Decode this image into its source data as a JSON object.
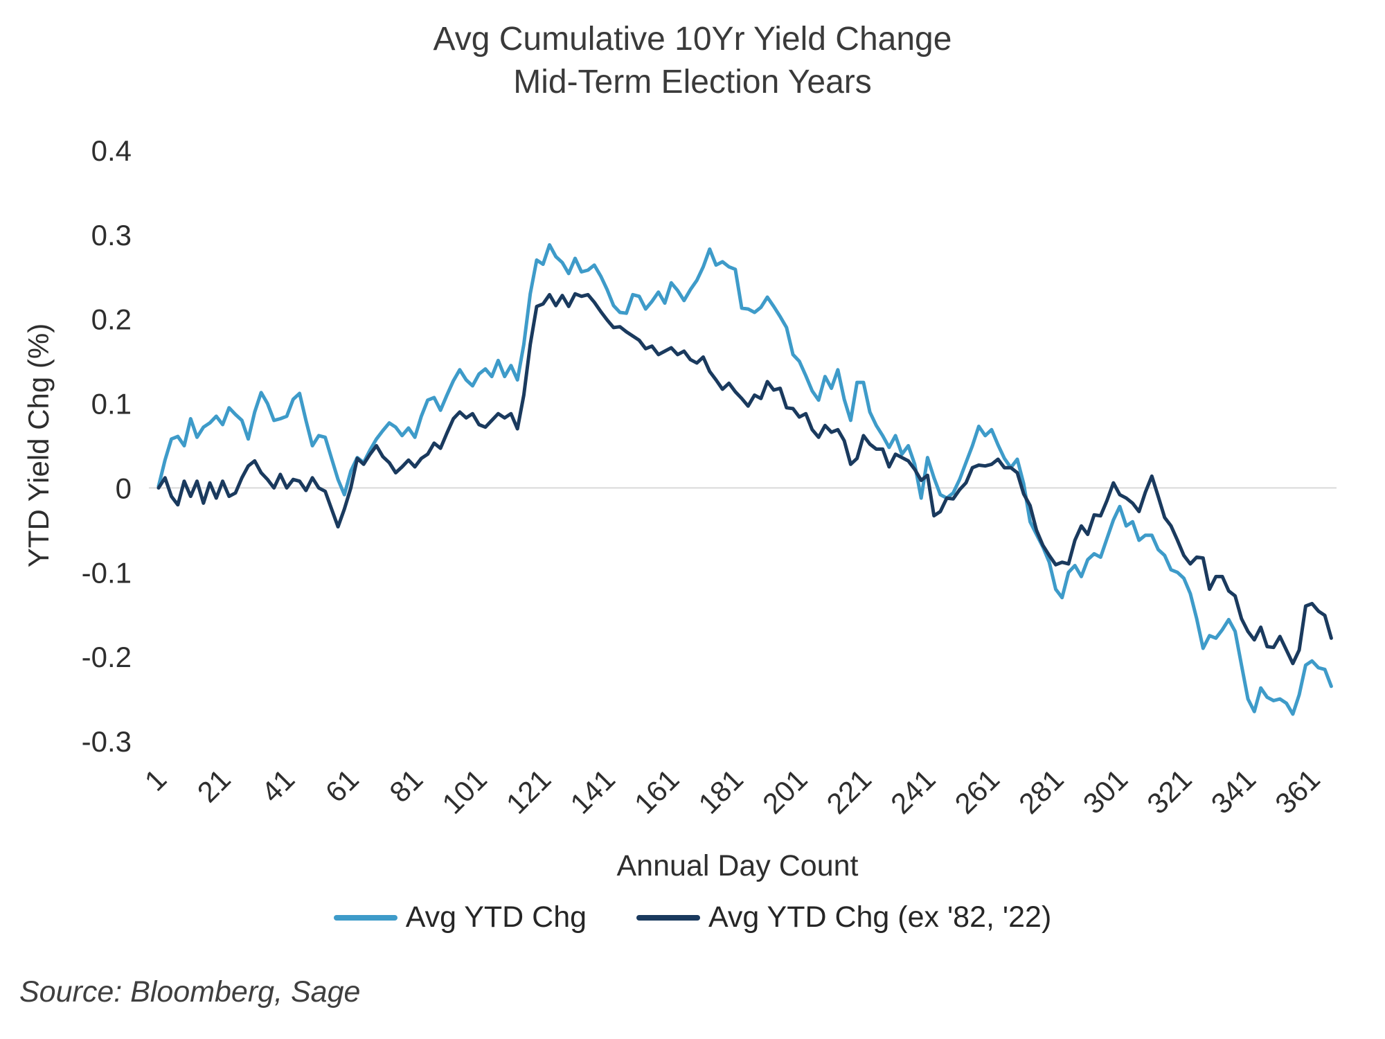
{
  "title": {
    "line1": "Avg Cumulative 10Yr Yield Change",
    "line2": "Mid-Term Election Years"
  },
  "source": "Source: Bloomberg, Sage",
  "colors": {
    "series_light_blue": "#3E9BC9",
    "series_navy": "#1A3A5E",
    "gridline": "#D9D9D9",
    "tick_text": "#2E2E2E",
    "title_text": "#3A3A3A"
  },
  "chart_data": {
    "type": "line",
    "title": "Avg Cumulative 10Yr Yield Change - Mid-Term Election Years",
    "xlabel": "Annual Day Count",
    "ylabel": "YTD Yield Chg (%)",
    "legend_position": "bottom",
    "grid": "zero-line-only",
    "x_axis": {
      "label": "Annual Day Count",
      "ticks": [
        1,
        21,
        41,
        61,
        81,
        101,
        121,
        141,
        161,
        181,
        201,
        221,
        241,
        261,
        281,
        301,
        321,
        341,
        361
      ],
      "tick_rotation_deg": -45
    },
    "y_axis": {
      "label": "YTD Yield Chg (%)",
      "ticks": [
        "0.4",
        "0.3",
        "0.2",
        "0.1",
        "0",
        "-0.1",
        "-0.2",
        "-0.3"
      ],
      "min": -0.3,
      "max": 0.4
    },
    "xlim": [
      1,
      368
    ],
    "ylim": [
      -0.3,
      0.4
    ],
    "x_day_start": 1,
    "x_day_step": 2,
    "series": [
      {
        "name": "Avg YTD Chg",
        "color": "#3E9BC9",
        "values": [
          0.002,
          0.033,
          0.058,
          0.061,
          0.05,
          0.082,
          0.06,
          0.072,
          0.077,
          0.085,
          0.075,
          0.095,
          0.087,
          0.08,
          0.058,
          0.09,
          0.113,
          0.1,
          0.08,
          0.082,
          0.085,
          0.105,
          0.112,
          0.08,
          0.05,
          0.062,
          0.06,
          0.035,
          0.01,
          -0.008,
          0.02,
          0.036,
          0.03,
          0.045,
          0.058,
          0.068,
          0.077,
          0.072,
          0.062,
          0.071,
          0.06,
          0.085,
          0.104,
          0.107,
          0.092,
          0.11,
          0.127,
          0.14,
          0.128,
          0.121,
          0.135,
          0.141,
          0.132,
          0.151,
          0.132,
          0.145,
          0.128,
          0.17,
          0.23,
          0.27,
          0.265,
          0.288,
          0.274,
          0.267,
          0.254,
          0.272,
          0.256,
          0.258,
          0.264,
          0.251,
          0.235,
          0.216,
          0.208,
          0.207,
          0.229,
          0.227,
          0.212,
          0.221,
          0.232,
          0.219,
          0.243,
          0.234,
          0.222,
          0.235,
          0.246,
          0.262,
          0.283,
          0.264,
          0.268,
          0.262,
          0.259,
          0.213,
          0.212,
          0.208,
          0.214,
          0.226,
          0.215,
          0.203,
          0.19,
          0.158,
          0.15,
          0.133,
          0.115,
          0.104,
          0.132,
          0.118,
          0.14,
          0.105,
          0.08,
          0.125,
          0.125,
          0.09,
          0.074,
          0.062,
          0.048,
          0.062,
          0.04,
          0.05,
          0.028,
          -0.012,
          0.036,
          0.012,
          -0.008,
          -0.012,
          -0.006,
          0.01,
          0.03,
          0.05,
          0.073,
          0.062,
          0.069,
          0.051,
          0.035,
          0.024,
          0.034,
          0.005,
          -0.04,
          -0.055,
          -0.07,
          -0.088,
          -0.12,
          -0.13,
          -0.1,
          -0.092,
          -0.105,
          -0.085,
          -0.078,
          -0.082,
          -0.06,
          -0.038,
          -0.022,
          -0.045,
          -0.04,
          -0.062,
          -0.056,
          -0.056,
          -0.073,
          -0.08,
          -0.097,
          -0.1,
          -0.107,
          -0.125,
          -0.155,
          -0.19,
          -0.175,
          -0.178,
          -0.168,
          -0.156,
          -0.17,
          -0.21,
          -0.25,
          -0.265,
          -0.237,
          -0.248,
          -0.252,
          -0.25,
          -0.255,
          -0.268,
          -0.245,
          -0.21,
          -0.205,
          -0.213,
          -0.215,
          -0.235
        ]
      },
      {
        "name": "Avg YTD Chg (ex '82, '22)",
        "color": "#1A3A5E",
        "values": [
          0.0,
          0.012,
          -0.01,
          -0.02,
          0.008,
          -0.01,
          0.008,
          -0.018,
          0.006,
          -0.012,
          0.008,
          -0.01,
          -0.006,
          0.012,
          0.026,
          0.032,
          0.018,
          0.01,
          0.0,
          0.016,
          0.0,
          0.01,
          0.008,
          -0.003,
          0.012,
          0.0,
          -0.004,
          -0.025,
          -0.046,
          -0.025,
          0.0,
          0.035,
          0.028,
          0.04,
          0.05,
          0.037,
          0.03,
          0.018,
          0.025,
          0.033,
          0.025,
          0.035,
          0.04,
          0.053,
          0.047,
          0.065,
          0.082,
          0.09,
          0.083,
          0.088,
          0.075,
          0.072,
          0.08,
          0.088,
          0.083,
          0.088,
          0.07,
          0.11,
          0.17,
          0.215,
          0.218,
          0.229,
          0.216,
          0.228,
          0.215,
          0.23,
          0.227,
          0.229,
          0.22,
          0.209,
          0.199,
          0.19,
          0.191,
          0.185,
          0.18,
          0.175,
          0.165,
          0.168,
          0.158,
          0.162,
          0.166,
          0.158,
          0.162,
          0.152,
          0.148,
          0.155,
          0.138,
          0.128,
          0.117,
          0.124,
          0.114,
          0.106,
          0.097,
          0.11,
          0.106,
          0.126,
          0.116,
          0.118,
          0.095,
          0.094,
          0.084,
          0.088,
          0.069,
          0.06,
          0.074,
          0.066,
          0.069,
          0.056,
          0.028,
          0.035,
          0.062,
          0.052,
          0.046,
          0.046,
          0.025,
          0.04,
          0.036,
          0.032,
          0.022,
          0.009,
          0.015,
          -0.033,
          -0.028,
          -0.012,
          -0.013,
          -0.002,
          0.006,
          0.024,
          0.027,
          0.026,
          0.028,
          0.034,
          0.024,
          0.024,
          0.018,
          -0.007,
          -0.021,
          -0.05,
          -0.068,
          -0.08,
          -0.091,
          -0.088,
          -0.09,
          -0.062,
          -0.045,
          -0.055,
          -0.032,
          -0.033,
          -0.015,
          0.006,
          -0.008,
          -0.012,
          -0.018,
          -0.028,
          -0.005,
          0.014,
          -0.01,
          -0.035,
          -0.045,
          -0.062,
          -0.08,
          -0.09,
          -0.082,
          -0.083,
          -0.12,
          -0.105,
          -0.105,
          -0.122,
          -0.128,
          -0.155,
          -0.17,
          -0.18,
          -0.165,
          -0.188,
          -0.189,
          -0.176,
          -0.192,
          -0.208,
          -0.192,
          -0.14,
          -0.137,
          -0.146,
          -0.151,
          -0.178
        ]
      }
    ]
  }
}
